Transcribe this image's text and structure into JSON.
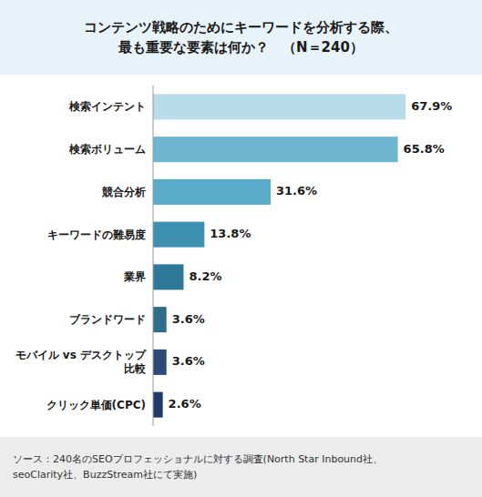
{
  "chart_data": {
    "type": "bar",
    "orientation": "horizontal",
    "title": "コンテンツ戦略のためにキーワードを分析する際、\n最も重要な要素は何か？　（N＝240）",
    "categories": [
      "検索インテント",
      "検索ボリューム",
      "競合分析",
      "キーワードの難易度",
      "業界",
      "ブランドワード",
      "モバイル vs デスクトップ\n比較",
      "クリック単価(CPC)"
    ],
    "values": [
      67.9,
      65.8,
      31.6,
      13.8,
      8.2,
      3.6,
      3.6,
      2.6
    ],
    "value_labels": [
      "67.9%",
      "65.8%",
      "31.6%",
      "13.8%",
      "8.2%",
      "3.6%",
      "3.6%",
      "2.6%"
    ],
    "colors": [
      "#b8dcea",
      "#6eb5d0",
      "#5aabca",
      "#3e90b0",
      "#2e7898",
      "#2e6e8a",
      "#2e4a7a",
      "#1e3a6a"
    ],
    "xlim": [
      0,
      85
    ],
    "data_labels": true,
    "tick_labels": "y",
    "annotations": [
      "ソース：240名のSEOプロフェッショナルに対する調査(North Star Inbound社、\nseoClarity社、BuzzStream社にて実施)"
    ]
  }
}
